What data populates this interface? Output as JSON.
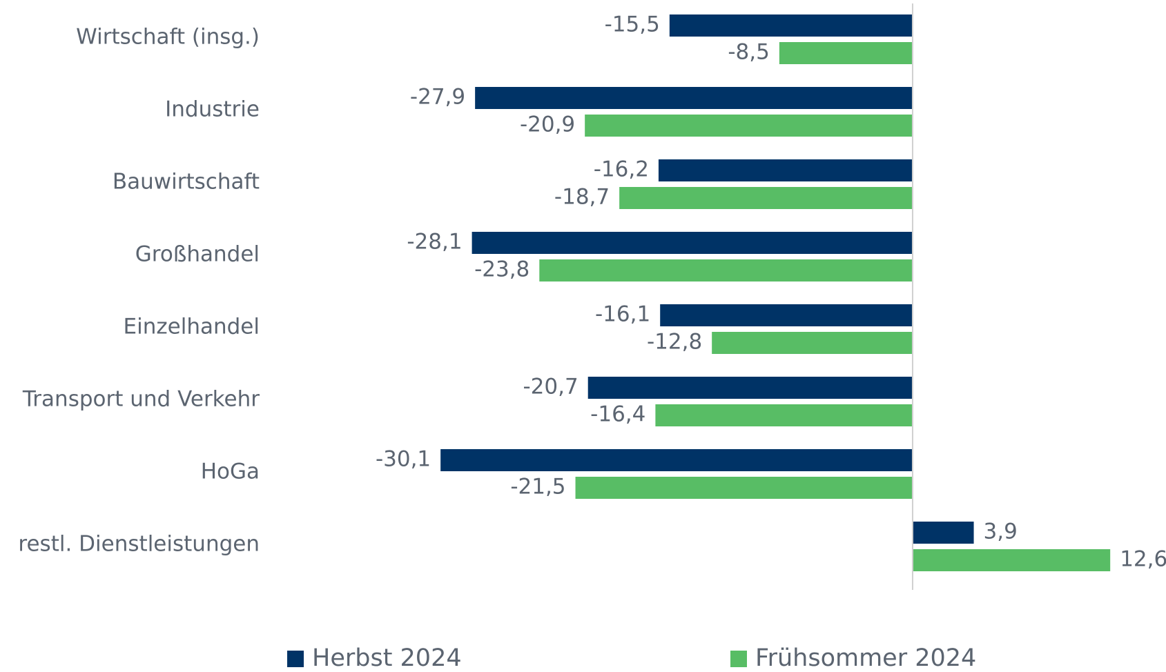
{
  "chart_data": {
    "type": "barh",
    "categories": [
      "Wirtschaft (insg.)",
      "Industrie",
      "Bauwirtschaft",
      "Großhandel",
      "Einzelhandel",
      "Transport und Verkehr",
      "HoGa",
      "restl. Dienstleistungen"
    ],
    "series": [
      {
        "name": "Herbst 2024",
        "color": "#003366",
        "values": [
          -15.5,
          -27.9,
          -16.2,
          -28.1,
          -16.1,
          -20.7,
          -30.1,
          3.9
        ],
        "value_labels": [
          "-15,5",
          "-27,9",
          "-16,2",
          "-28,1",
          "-16,1",
          "-20,7",
          "-30,1",
          "3,9"
        ]
      },
      {
        "name": "Frühsommer 2024",
        "color": "#58bd65",
        "values": [
          -8.5,
          -20.9,
          -18.7,
          -23.8,
          -12.8,
          -16.4,
          -21.5,
          12.6
        ],
        "value_labels": [
          "-8,5",
          "-20,9",
          "-18,7",
          "-23,8",
          "-12,8",
          "-16,4",
          "-21,5",
          "12,6"
        ]
      }
    ],
    "xlim": [
      -32,
      14
    ],
    "legend": "bottom"
  }
}
